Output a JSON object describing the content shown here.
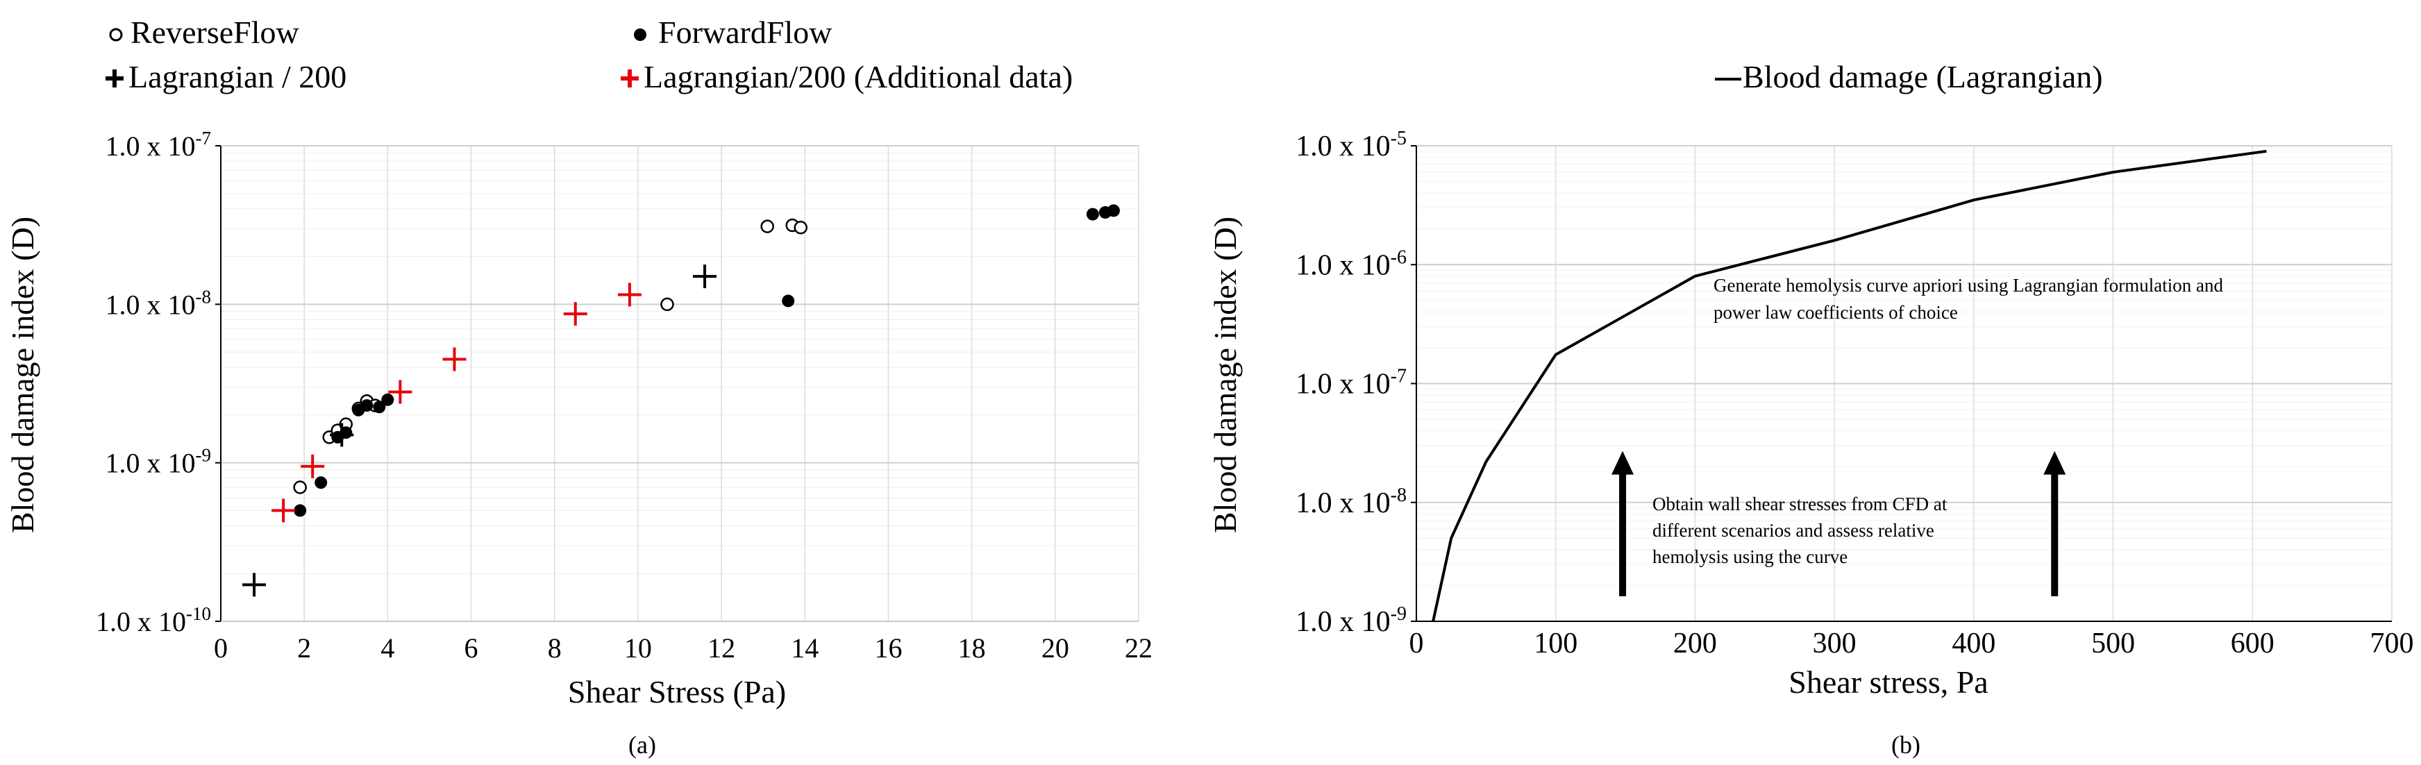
{
  "chart_data": [
    {
      "type": "scatter",
      "panel_label": "(a)",
      "xlabel": "Shear Stress (Pa)",
      "ylabel": "Blood damage index (D)",
      "xlim": [
        0,
        22
      ],
      "ylim": [
        1e-10,
        1e-07
      ],
      "y_scale": "log",
      "x_ticks": [
        {
          "v": 0,
          "label": "0"
        },
        {
          "v": 2,
          "label": "2"
        },
        {
          "v": 4,
          "label": "4"
        },
        {
          "v": 6,
          "label": "6"
        },
        {
          "v": 8,
          "label": "8"
        },
        {
          "v": 10,
          "label": "10"
        },
        {
          "v": 12,
          "label": "12"
        },
        {
          "v": 14,
          "label": "14"
        },
        {
          "v": 16,
          "label": "16"
        },
        {
          "v": 18,
          "label": "18"
        },
        {
          "v": 20,
          "label": "20"
        },
        {
          "v": 22,
          "label": "22"
        }
      ],
      "y_ticks": [
        {
          "v": 1e-10,
          "base": "1.0 x 10",
          "exp": "-10"
        },
        {
          "v": 1e-09,
          "base": "1.0 x 10",
          "exp": "-9"
        },
        {
          "v": 1e-08,
          "base": "1.0 x 10",
          "exp": "-8"
        },
        {
          "v": 1e-07,
          "base": "1.0 x 10",
          "exp": "-7"
        }
      ],
      "grid": true,
      "legend_position": "top",
      "series": [
        {
          "name": "ReverseFlow",
          "marker": "open-circle",
          "color": "#000000",
          "points": [
            [
              1.9,
              7e-10
            ],
            [
              2.6,
              1.45e-09
            ],
            [
              2.8,
              1.6e-09
            ],
            [
              3.0,
              1.75e-09
            ],
            [
              3.3,
              2.2e-09
            ],
            [
              3.5,
              2.45e-09
            ],
            [
              3.7,
              2.3e-09
            ],
            [
              10.7,
              1e-08
            ],
            [
              13.1,
              3.1e-08
            ],
            [
              13.7,
              3.15e-08
            ],
            [
              13.9,
              3.05e-08
            ]
          ]
        },
        {
          "name": "ForwardFlow",
          "marker": "filled-circle",
          "color": "#000000",
          "points": [
            [
              1.9,
              5e-10
            ],
            [
              2.4,
              7.5e-10
            ],
            [
              2.8,
              1.45e-09
            ],
            [
              3.0,
              1.55e-09
            ],
            [
              3.3,
              2.15e-09
            ],
            [
              3.5,
              2.3e-09
            ],
            [
              3.8,
              2.25e-09
            ],
            [
              4.0,
              2.5e-09
            ],
            [
              13.6,
              1.05e-08
            ],
            [
              20.9,
              3.7e-08
            ],
            [
              21.2,
              3.8e-08
            ],
            [
              21.4,
              3.9e-08
            ]
          ]
        },
        {
          "name": "Lagrangian / 200",
          "marker": "plus",
          "color": "#000000",
          "points": [
            [
              0.8,
              1.7e-10
            ],
            [
              2.9,
              1.5e-09
            ],
            [
              11.6,
              1.5e-08
            ]
          ]
        },
        {
          "name": "Lagrangian/200 (Additional data)",
          "marker": "plus",
          "color": "#e8000b",
          "points": [
            [
              1.5,
              5e-10
            ],
            [
              2.2,
              9.5e-10
            ],
            [
              4.3,
              2.8e-09
            ],
            [
              5.6,
              4.5e-09
            ],
            [
              8.5,
              8.7e-09
            ],
            [
              9.8,
              1.15e-08
            ]
          ]
        }
      ]
    },
    {
      "type": "line",
      "panel_label": "(b)",
      "xlabel": "Shear stress, Pa",
      "ylabel": "Blood damage index (D)",
      "xlim": [
        0,
        700
      ],
      "ylim": [
        1e-09,
        1e-05
      ],
      "y_scale": "log",
      "x_ticks": [
        {
          "v": 0,
          "label": "0"
        },
        {
          "v": 100,
          "label": "100"
        },
        {
          "v": 200,
          "label": "200"
        },
        {
          "v": 300,
          "label": "300"
        },
        {
          "v": 400,
          "label": "400"
        },
        {
          "v": 500,
          "label": "500"
        },
        {
          "v": 600,
          "label": "600"
        },
        {
          "v": 700,
          "label": "700"
        }
      ],
      "y_ticks": [
        {
          "v": 1e-09,
          "base": "1.0 x 10",
          "exp": "-9"
        },
        {
          "v": 1e-08,
          "base": "1.0 x 10",
          "exp": "-8"
        },
        {
          "v": 1e-07,
          "base": "1.0 x 10",
          "exp": "-7"
        },
        {
          "v": 1e-06,
          "base": "1.0 x 10",
          "exp": "-6"
        },
        {
          "v": 1e-05,
          "base": "1.0 x 10",
          "exp": "-5"
        }
      ],
      "grid": true,
      "legend_position": "top",
      "series": [
        {
          "name": "Blood damage (Lagrangian)",
          "color": "#000000",
          "points": [
            [
              12,
              1e-09
            ],
            [
              25,
              5e-09
            ],
            [
              50,
              2.2e-08
            ],
            [
              100,
              1.75e-07
            ],
            [
              200,
              8e-07
            ],
            [
              300,
              1.6e-06
            ],
            [
              400,
              3.5e-06
            ],
            [
              500,
              6e-06
            ],
            [
              610,
              9e-06
            ]
          ]
        }
      ],
      "annotations": [
        {
          "id": "note-top",
          "lines": [
            "Generate hemolysis curve apriori using Lagrangian formulation and",
            "power law coefficients of choice"
          ]
        },
        {
          "id": "note-bottom",
          "lines": [
            "Obtain wall shear stresses from CFD at",
            "different scenarios and assess relative",
            "hemolysis using the curve"
          ]
        }
      ],
      "arrows": [
        {
          "x": 148,
          "y_from": 9.5e-10,
          "y_to": 2.5e-08
        },
        {
          "x": 458,
          "y_from": 9.5e-10,
          "y_to": 2.5e-08
        }
      ]
    }
  ]
}
